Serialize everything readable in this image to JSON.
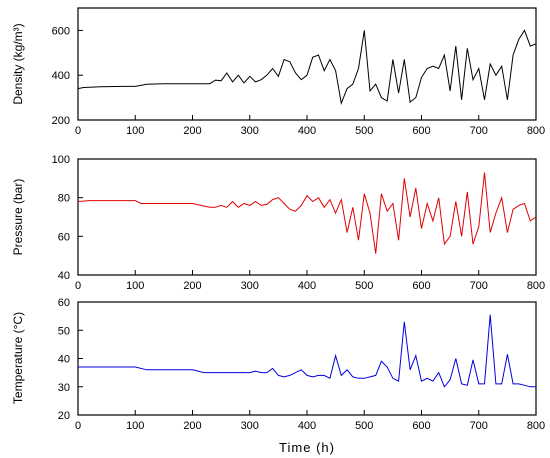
{
  "chart_data": [
    {
      "type": "line",
      "ylabel": "Density (kg/m³)",
      "ylim": [
        200,
        700
      ],
      "yticks": [
        200,
        400,
        600
      ],
      "xlim": [
        0,
        800
      ],
      "xticks": [
        0,
        100,
        200,
        300,
        400,
        500,
        600,
        700,
        800
      ],
      "grid": false,
      "series": [
        {
          "color": "#000000",
          "x": [
            0,
            10,
            40,
            80,
            100,
            120,
            150,
            200,
            230,
            240,
            250,
            260,
            270,
            280,
            290,
            300,
            310,
            320,
            330,
            340,
            350,
            360,
            370,
            380,
            390,
            400,
            410,
            420,
            430,
            440,
            450,
            460,
            470,
            480,
            490,
            500,
            510,
            520,
            530,
            540,
            550,
            560,
            570,
            580,
            590,
            600,
            610,
            620,
            630,
            640,
            650,
            660,
            670,
            680,
            690,
            700,
            710,
            720,
            730,
            740,
            750,
            760,
            770,
            780,
            790,
            800
          ],
          "y": [
            340,
            345,
            348,
            350,
            350,
            360,
            362,
            362,
            362,
            378,
            375,
            410,
            370,
            400,
            365,
            395,
            370,
            380,
            400,
            430,
            395,
            470,
            460,
            410,
            380,
            400,
            480,
            490,
            420,
            470,
            420,
            275,
            340,
            360,
            430,
            600,
            330,
            360,
            300,
            285,
            470,
            320,
            470,
            280,
            300,
            390,
            430,
            440,
            430,
            490,
            330,
            530,
            290,
            520,
            380,
            430,
            290,
            450,
            400,
            440,
            290,
            490,
            560,
            600,
            530,
            540
          ]
        }
      ]
    },
    {
      "type": "line",
      "ylabel": "Pressure (bar)",
      "ylim": [
        40,
        100
      ],
      "yticks": [
        40,
        60,
        80,
        100
      ],
      "xlim": [
        0,
        800
      ],
      "xticks": [
        0,
        100,
        200,
        300,
        400,
        500,
        600,
        700,
        800
      ],
      "grid": false,
      "series": [
        {
          "color": "#e00000",
          "x": [
            0,
            20,
            50,
            100,
            110,
            150,
            200,
            230,
            240,
            250,
            260,
            270,
            280,
            290,
            300,
            310,
            320,
            330,
            340,
            350,
            360,
            370,
            380,
            390,
            400,
            410,
            420,
            430,
            440,
            450,
            460,
            470,
            480,
            490,
            500,
            510,
            520,
            530,
            540,
            550,
            560,
            570,
            580,
            590,
            600,
            610,
            620,
            630,
            640,
            650,
            660,
            670,
            680,
            690,
            700,
            710,
            720,
            730,
            740,
            750,
            760,
            770,
            780,
            790,
            800
          ],
          "y": [
            78,
            78.5,
            78.5,
            78.5,
            77,
            77,
            77,
            75,
            75,
            76,
            75,
            78,
            75,
            77,
            76,
            78,
            76,
            76.5,
            79,
            80,
            77,
            74,
            73,
            76,
            81,
            78,
            80,
            75,
            79,
            72,
            79,
            62,
            75,
            58,
            82,
            72,
            51,
            82,
            73,
            77,
            58,
            90,
            70,
            85,
            64,
            77,
            68,
            80,
            56,
            60,
            78,
            60,
            83,
            56,
            65,
            93,
            62,
            72,
            80,
            62,
            74,
            76,
            77,
            68,
            70
          ]
        }
      ]
    },
    {
      "type": "line",
      "ylabel": "Temperature (°C)",
      "ylim": [
        20,
        60
      ],
      "yticks": [
        20,
        30,
        40,
        50,
        60
      ],
      "xlim": [
        0,
        800
      ],
      "xticks": [
        0,
        100,
        200,
        300,
        400,
        500,
        600,
        700,
        800
      ],
      "xlabel": "Time (h)",
      "grid": false,
      "series": [
        {
          "color": "#0000e0",
          "x": [
            0,
            20,
            50,
            100,
            120,
            150,
            200,
            220,
            240,
            260,
            280,
            300,
            310,
            320,
            330,
            340,
            350,
            360,
            370,
            380,
            390,
            400,
            410,
            420,
            430,
            440,
            450,
            460,
            470,
            480,
            490,
            500,
            510,
            520,
            530,
            540,
            550,
            560,
            570,
            580,
            590,
            600,
            610,
            620,
            630,
            640,
            650,
            660,
            670,
            680,
            690,
            700,
            710,
            720,
            730,
            740,
            750,
            760,
            770,
            780,
            790,
            800
          ],
          "y": [
            37,
            37,
            37,
            37,
            36,
            36,
            36,
            35,
            35,
            35,
            35,
            35,
            35.5,
            35,
            35,
            36.5,
            34,
            33.5,
            34,
            35,
            36,
            34,
            33.5,
            34,
            34,
            33,
            41,
            34,
            36,
            33.5,
            33,
            33,
            33.5,
            34,
            39,
            37,
            33,
            32,
            53,
            36,
            41,
            32,
            33,
            32,
            35,
            30,
            32.5,
            40,
            31,
            30.5,
            39.5,
            31,
            31,
            55.5,
            31,
            31,
            41.5,
            31,
            31,
            30.5,
            30,
            30
          ]
        }
      ]
    }
  ]
}
